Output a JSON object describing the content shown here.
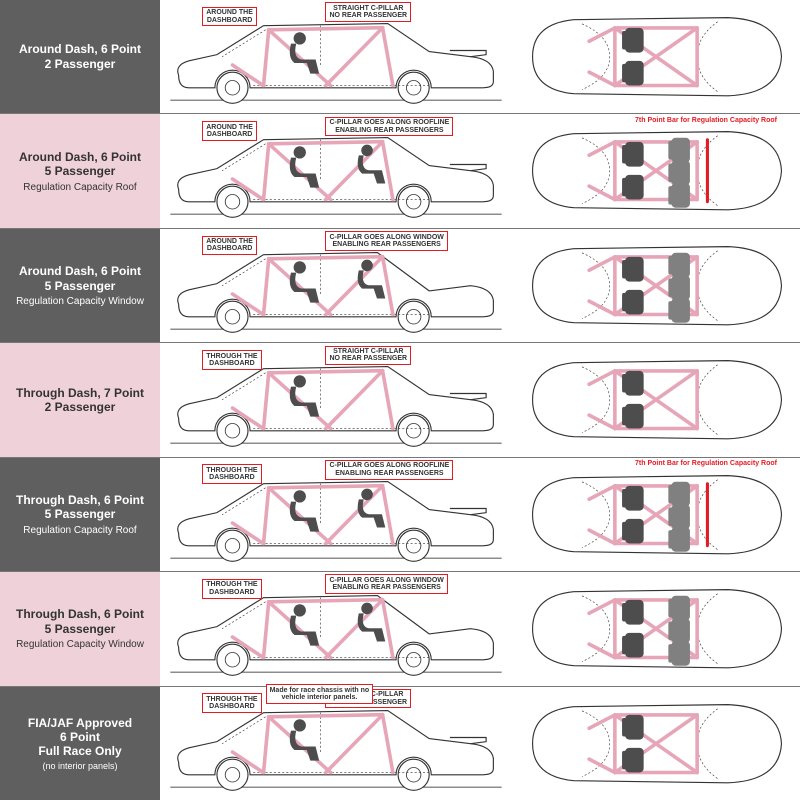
{
  "colors": {
    "dark_row_bg": "#5f5f5f",
    "pink_row_bg": "#efd1da",
    "cage_pink": "#e6a6b8",
    "callout_red": "#e31b23",
    "person_gray": "#4d4d4d"
  },
  "rows": [
    {
      "variant": "dark",
      "title": "Around Dash, 6 Point\n2 Passenger",
      "subtitle": "",
      "tiny": "",
      "callouts": {
        "dash": "AROUND THE\nDASHBOARD",
        "pillar": "STRAIGHT C-PILLAR\nNO REAR PASSENGER"
      },
      "rear_passengers": false,
      "top_seats": 2,
      "hatch": false,
      "top_note": "",
      "extra_red_bar": false,
      "extra_callout": ""
    },
    {
      "variant": "pink",
      "title": "Around Dash, 6 Point\n5 Passenger",
      "subtitle": "Regulation Capacity Roof",
      "tiny": "",
      "callouts": {
        "dash": "AROUND THE\nDASHBOARD",
        "pillar": "C-PILLAR GOES ALONG ROOFLINE\nENABLING REAR PASSENGERS"
      },
      "rear_passengers": true,
      "top_seats": 5,
      "hatch": false,
      "top_note": "7th Point Bar for Regulation Capacity Roof",
      "extra_red_bar": true,
      "extra_callout": ""
    },
    {
      "variant": "dark",
      "title": "Around Dash, 6 Point\n5 Passenger",
      "subtitle": "Regulation Capacity Window",
      "tiny": "",
      "callouts": {
        "dash": "AROUND THE\nDASHBOARD",
        "pillar": "C-PILLAR GOES ALONG WINDOW\nENABLING REAR PASSENGERS"
      },
      "rear_passengers": true,
      "top_seats": 5,
      "hatch": true,
      "top_note": "",
      "extra_red_bar": false,
      "extra_callout": ""
    },
    {
      "variant": "pink",
      "title": "Through Dash, 7 Point\n2 Passenger",
      "subtitle": "",
      "tiny": "",
      "callouts": {
        "dash": "THROUGH THE\nDASHBOARD",
        "pillar": "STRAIGHT C-PILLAR\nNO REAR PASSENGER"
      },
      "rear_passengers": false,
      "top_seats": 2,
      "hatch": false,
      "top_note": "",
      "extra_red_bar": false,
      "extra_callout": ""
    },
    {
      "variant": "dark",
      "title": "Through Dash, 6 Point\n5 Passenger",
      "subtitle": "Regulation Capacity Roof",
      "tiny": "",
      "callouts": {
        "dash": "THROUGH THE\nDASHBOARD",
        "pillar": "C-PILLAR GOES ALONG ROOFLINE\nENABLING REAR PASSENGERS"
      },
      "rear_passengers": true,
      "top_seats": 5,
      "hatch": false,
      "top_note": "7th Point Bar for Regulation Capacity Roof",
      "extra_red_bar": true,
      "extra_callout": ""
    },
    {
      "variant": "pink",
      "title": "Through Dash, 6 Point\n5 Passenger",
      "subtitle": "Regulation Capacity Window",
      "tiny": "",
      "callouts": {
        "dash": "THROUGH THE\nDASHBOARD",
        "pillar": "C-PILLAR GOES ALONG WINDOW\nENABLING REAR PASSENGERS"
      },
      "rear_passengers": true,
      "top_seats": 5,
      "hatch": true,
      "top_note": "",
      "extra_red_bar": false,
      "extra_callout": ""
    },
    {
      "variant": "dark",
      "title": "FIA/JAF Approved\n6 Point\nFull Race Only",
      "subtitle": "",
      "tiny": "(no interior panels)",
      "callouts": {
        "dash": "THROUGH THE\nDASHBOARD",
        "pillar": "STRAIGHT C-PILLAR\nNO REAR PASSENGER"
      },
      "rear_passengers": false,
      "top_seats": 2,
      "hatch": false,
      "top_note": "",
      "extra_red_bar": false,
      "extra_callout": "Made for race chassis with no\nvehicle interior panels."
    }
  ]
}
